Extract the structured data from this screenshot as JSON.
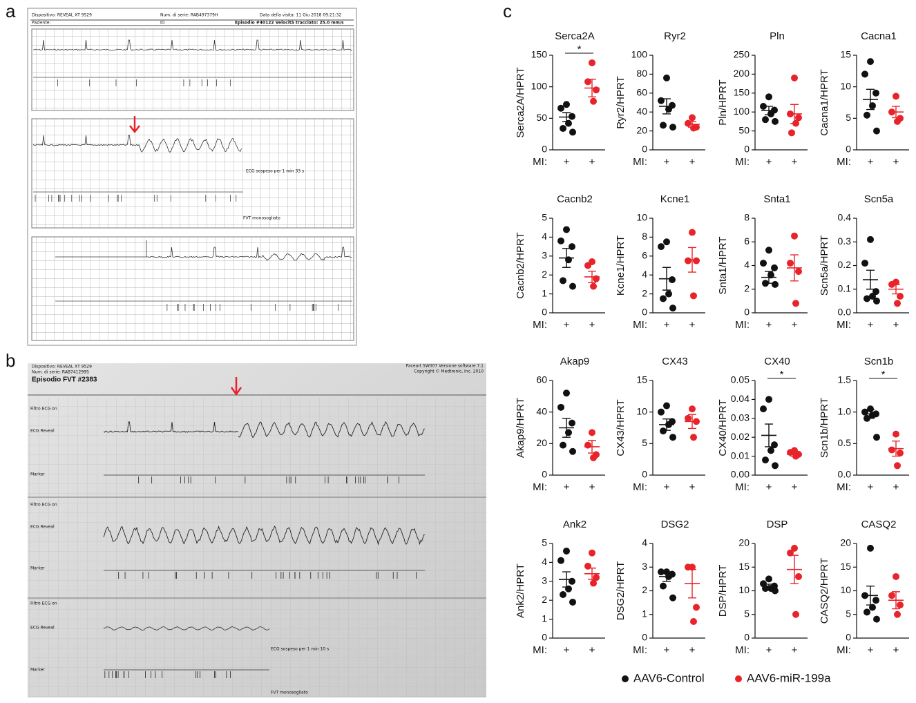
{
  "panel_labels": [
    "a",
    "b",
    "c"
  ],
  "ecg_a": {
    "header": [
      "Dispositivo: REVEAL XT 9529",
      "Num. di serie: RAB497379H",
      "Data della visita: 11 Giu 2018 09:21:32"
    ],
    "subheader": [
      "Paziente:",
      "ID",
      "Episodio #40122   Velocità tracciato: 25.0 mm/s"
    ],
    "notes": [
      "ECG sospeso per 1 min 33 s",
      "FVT monosogliato"
    ]
  },
  "ecg_b": {
    "header": [
      "Dispositivo:  REVEAL XT 9529",
      "Num. di serie:  RAB741299S",
      "Episodio FVT #2383"
    ],
    "software": [
      "Paceart SW007 Versione software 7.1",
      "Copyright © Medtronic, Inc. 2010"
    ],
    "row_labels": [
      "Filtro ECG on",
      "ECG Reveal",
      "Marker"
    ],
    "notes": [
      "ECG sospeso per 1 min 10 s",
      "FVT monosogliato"
    ]
  },
  "chart_data": {
    "type": "dotplot",
    "x_label": "MI:",
    "x_tick": "+",
    "series": [
      {
        "name": "AAV6-Control",
        "color": "#111111"
      },
      {
        "name": "AAV6-miR-199a",
        "color": "#e8232a"
      }
    ],
    "panels": [
      {
        "title": "Serca2A",
        "ylabel": "Serca2A/HPRT",
        "ylim": [
          0,
          150
        ],
        "yticks": [
          0,
          50,
          100,
          150
        ],
        "values": [
          [
            72,
            66,
            53,
            42,
            34,
            28
          ],
          [
            138,
            108,
            95,
            77
          ]
        ],
        "mean": [
          52,
          98
        ],
        "sem": [
          7,
          14
        ],
        "significance": "*"
      },
      {
        "title": "Ryr2",
        "ylabel": "Ryr2/HPRT",
        "ylim": [
          0,
          100
        ],
        "yticks": [
          0,
          20,
          40,
          60,
          80,
          100
        ],
        "values": [
          [
            76,
            52,
            47,
            43,
            26,
            24
          ],
          [
            34,
            28,
            24,
            23
          ]
        ],
        "mean": [
          46,
          27
        ],
        "sem": [
          8,
          3
        ]
      },
      {
        "title": "Pln",
        "ylabel": "Pln/HPRT",
        "ylim": [
          0,
          250
        ],
        "yticks": [
          0,
          50,
          100,
          150,
          200,
          250
        ],
        "values": [
          [
            140,
            115,
            105,
            95,
            80,
            75
          ],
          [
            190,
            95,
            85,
            70,
            45
          ]
        ],
        "mean": [
          104,
          95
        ],
        "sem": [
          11,
          25
        ]
      },
      {
        "title": "Cacna1",
        "ylabel": "Cacna1/HPRT",
        "ylim": [
          0,
          15
        ],
        "yticks": [
          0,
          5,
          10,
          15
        ],
        "values": [
          [
            14,
            12,
            9,
            7,
            5.5,
            3
          ],
          [
            8.5,
            6,
            5,
            4.5
          ]
        ],
        "mean": [
          8,
          6
        ],
        "sem": [
          1.6,
          0.9
        ]
      },
      {
        "title": "Cacnb2",
        "ylabel": "Cacnb2/HPRT",
        "ylim": [
          0,
          5
        ],
        "yticks": [
          0,
          1,
          2,
          3,
          4,
          5
        ],
        "values": [
          [
            4.4,
            3.8,
            3.5,
            2.8,
            1.7,
            1.4
          ],
          [
            2.7,
            2.5,
            1.8,
            1.4
          ]
        ],
        "mean": [
          2.9,
          1.9
        ],
        "sem": [
          0.5,
          0.3
        ]
      },
      {
        "title": "Kcne1",
        "ylabel": "Kcne1/HPRT",
        "ylim": [
          0,
          10
        ],
        "yticks": [
          0,
          2,
          4,
          6,
          8,
          10
        ],
        "values": [
          [
            7.5,
            7,
            3.5,
            2,
            1.5,
            0.5
          ],
          [
            8.5,
            5.5,
            5.5,
            1.8
          ]
        ],
        "mean": [
          3.6,
          5.6
        ],
        "sem": [
          1.2,
          1.3
        ]
      },
      {
        "title": "Snta1",
        "ylabel": "Snta1/HPRT",
        "ylim": [
          0,
          8
        ],
        "yticks": [
          0,
          2,
          4,
          6,
          8
        ],
        "values": [
          [
            5.3,
            4.2,
            3.8,
            3.2,
            2.5,
            2.4
          ],
          [
            6.5,
            4.2,
            3.5,
            0.8
          ]
        ],
        "mean": [
          3,
          3.8
        ],
        "sem": [
          0.5,
          1.1
        ]
      },
      {
        "title": "Scn5a",
        "ylabel": "Scn5a/HPRT",
        "ylim": [
          0,
          0.4
        ],
        "yticks": [
          {
            "value": 0,
            "label": "0.0"
          },
          0.1,
          0.2,
          0.3,
          0.4
        ],
        "values": [
          [
            0.31,
            0.21,
            0.09,
            0.07,
            0.06,
            0.05
          ],
          [
            0.13,
            0.12,
            0.07,
            0.04
          ]
        ],
        "mean": [
          0.14,
          0.1
        ],
        "sem": [
          0.04,
          0.02
        ]
      },
      {
        "title": "Akap9",
        "ylabel": "Akap9/HPRT",
        "ylim": [
          0,
          60
        ],
        "yticks": [
          0,
          20,
          40,
          60
        ],
        "values": [
          [
            52,
            43,
            33,
            27,
            19,
            15
          ],
          [
            27,
            19,
            13,
            11
          ]
        ],
        "mean": [
          30,
          18
        ],
        "sem": [
          6,
          4
        ]
      },
      {
        "title": "CX43",
        "ylabel": "CX43/HPRT",
        "ylim": [
          0,
          15
        ],
        "yticks": [
          0,
          5,
          10,
          15
        ],
        "values": [
          [
            11,
            10,
            8.5,
            8,
            7,
            6
          ],
          [
            10.5,
            9,
            8.5,
            6
          ]
        ],
        "mean": [
          8,
          8.5
        ],
        "sem": [
          0.9,
          1.1
        ]
      },
      {
        "title": "CX40",
        "ylabel": "CX40/HPRT",
        "ylim": [
          0,
          0.05
        ],
        "yticks": [
          {
            "value": 0,
            "label": "0.00"
          },
          0.01,
          0.02,
          0.03,
          0.04,
          0.05
        ],
        "values": [
          [
            0.04,
            0.035,
            0.016,
            0.013,
            0.008,
            0.005
          ],
          [
            0.013,
            0.012,
            0.011,
            0.01
          ]
        ],
        "mean": [
          0.021,
          0.011
        ],
        "sem": [
          0.006,
          0.001
        ],
        "significance": "*"
      },
      {
        "title": "Scn1b",
        "ylabel": "Scn1b/HPRT",
        "ylim": [
          0,
          1.5
        ],
        "yticks": [
          {
            "value": 0,
            "label": "0.0"
          },
          0.5,
          {
            "value": 1,
            "label": "1.0"
          },
          1.5
        ],
        "values": [
          [
            1.05,
            1.0,
            0.97,
            0.95,
            0.9,
            0.6
          ],
          [
            0.65,
            0.4,
            0.35,
            0.15
          ]
        ],
        "mean": [
          0.97,
          0.42
        ],
        "sem": [
          0.07,
          0.12
        ],
        "significance": "*"
      },
      {
        "title": "Ank2",
        "ylabel": "Ank2/HPRT",
        "ylim": [
          0,
          5
        ],
        "yticks": [
          0,
          1,
          2,
          3,
          4,
          5
        ],
        "values": [
          [
            4.6,
            4.1,
            3.0,
            2.6,
            2.3,
            1.9
          ],
          [
            4.5,
            3.8,
            3.2,
            2.9
          ]
        ],
        "mean": [
          3.1,
          3.4
        ],
        "sem": [
          0.4,
          0.3
        ]
      },
      {
        "title": "DSG2",
        "ylabel": "DSG2/HPRT",
        "ylim": [
          0,
          4
        ],
        "yticks": [
          0,
          1,
          2,
          3,
          4
        ],
        "values": [
          [
            2.8,
            2.8,
            2.7,
            2.6,
            2.2,
            1.7
          ],
          [
            3.0,
            3.0,
            1.3,
            0.7
          ]
        ],
        "mean": [
          2.6,
          2.3
        ],
        "sem": [
          0.2,
          0.6
        ]
      },
      {
        "title": "DSP",
        "ylabel": "DSP/HPRT",
        "ylim": [
          0,
          20
        ],
        "yticks": [
          0,
          5,
          10,
          15,
          20
        ],
        "values": [
          [
            12.5,
            11.5,
            11,
            10.5,
            10.5,
            10
          ],
          [
            19,
            18,
            13,
            5
          ]
        ],
        "mean": [
          11,
          14.5
        ],
        "sem": [
          0.4,
          3
        ]
      },
      {
        "title": "CASQ2",
        "ylabel": "CASQ2/HPRT",
        "ylim": [
          0,
          20
        ],
        "yticks": [
          0,
          5,
          10,
          15,
          20
        ],
        "values": [
          [
            19,
            9,
            8,
            6.5,
            5.5,
            4
          ],
          [
            13,
            9,
            7,
            5
          ]
        ],
        "mean": [
          9,
          8
        ],
        "sem": [
          2,
          1.8
        ]
      }
    ]
  }
}
